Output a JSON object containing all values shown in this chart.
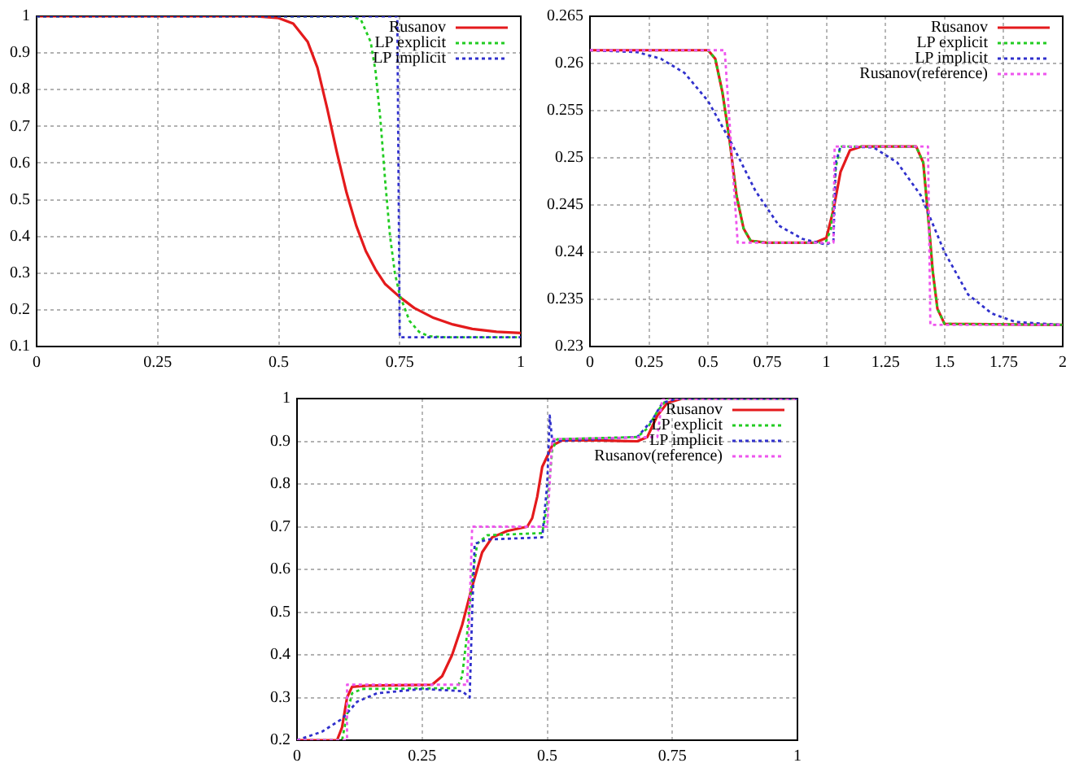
{
  "chart_data": [
    {
      "type": "line",
      "xlim": [
        0,
        1
      ],
      "xticks": [
        0,
        0.25,
        0.5,
        0.75,
        1
      ],
      "ylim": [
        0.1,
        1
      ],
      "yticks": [
        0.1,
        0.2,
        0.3,
        0.4,
        0.5,
        0.6,
        0.7,
        0.8,
        0.9,
        1
      ],
      "grid": true,
      "legend": "top right",
      "series": [
        {
          "name": "Rusanov",
          "color": "#e41a1c",
          "line_style": "solid",
          "x": [
            0,
            0.45,
            0.5,
            0.53,
            0.56,
            0.58,
            0.6,
            0.62,
            0.64,
            0.66,
            0.68,
            0.7,
            0.72,
            0.75,
            0.78,
            0.82,
            0.86,
            0.9,
            0.95,
            1
          ],
          "values": [
            1,
            1,
            0.995,
            0.98,
            0.93,
            0.86,
            0.75,
            0.63,
            0.52,
            0.43,
            0.36,
            0.31,
            0.27,
            0.235,
            0.205,
            0.178,
            0.16,
            0.148,
            0.14,
            0.137
          ]
        },
        {
          "name": "LP explicit",
          "color": "#22cc22",
          "line_style": "dotted",
          "x": [
            0,
            0.65,
            0.67,
            0.69,
            0.7,
            0.71,
            0.72,
            0.73,
            0.74,
            0.75,
            0.77,
            0.79,
            0.81,
            0.85,
            1
          ],
          "values": [
            1,
            1,
            0.99,
            0.93,
            0.85,
            0.72,
            0.55,
            0.4,
            0.3,
            0.24,
            0.17,
            0.14,
            0.128,
            0.125,
            0.125
          ]
        },
        {
          "name": "LP implicit",
          "color": "#3030cc",
          "line_style": "dotted",
          "x": [
            0,
            0.745,
            0.75,
            1
          ],
          "values": [
            1,
            1,
            0.125,
            0.125
          ]
        }
      ]
    },
    {
      "type": "line",
      "xlim": [
        0,
        2
      ],
      "xticks": [
        0,
        0.25,
        0.5,
        0.75,
        1,
        1.25,
        1.5,
        1.75,
        2
      ],
      "ylim": [
        0.23,
        0.265
      ],
      "yticks": [
        0.23,
        0.235,
        0.24,
        0.245,
        0.25,
        0.255,
        0.26,
        0.265
      ],
      "grid": true,
      "legend": "top right",
      "series": [
        {
          "name": "Rusanov",
          "color": "#e41a1c",
          "line_style": "solid",
          "x": [
            0,
            0.5,
            0.53,
            0.56,
            0.59,
            0.62,
            0.65,
            0.68,
            0.75,
            0.95,
            1,
            1.03,
            1.06,
            1.1,
            1.15,
            1.38,
            1.41,
            1.43,
            1.45,
            1.47,
            1.5,
            2
          ],
          "values": [
            0.2614,
            0.2614,
            0.2605,
            0.257,
            0.252,
            0.246,
            0.2425,
            0.2412,
            0.241,
            0.241,
            0.2415,
            0.2445,
            0.2485,
            0.2508,
            0.2512,
            0.2512,
            0.2495,
            0.244,
            0.238,
            0.234,
            0.2324,
            0.2323
          ]
        },
        {
          "name": "LP explicit",
          "color": "#22cc22",
          "line_style": "dotted",
          "x": [
            0,
            0.5,
            0.53,
            0.56,
            0.59,
            0.62,
            0.65,
            0.68,
            0.75,
            0.98,
            1.0,
            1.02,
            1.04,
            1.06,
            1.38,
            1.41,
            1.43,
            1.45,
            1.47,
            1.5,
            2
          ],
          "values": [
            0.2614,
            0.2614,
            0.2605,
            0.257,
            0.252,
            0.246,
            0.2425,
            0.2412,
            0.241,
            0.241,
            0.2412,
            0.2425,
            0.249,
            0.2512,
            0.2512,
            0.2495,
            0.244,
            0.238,
            0.234,
            0.2324,
            0.2323
          ]
        },
        {
          "name": "LP implicit",
          "color": "#3030cc",
          "line_style": "dotted",
          "x": [
            0,
            0.2,
            0.3,
            0.4,
            0.5,
            0.6,
            0.7,
            0.8,
            0.9,
            1,
            1.03,
            1.04,
            1.06,
            1.2,
            1.3,
            1.4,
            1.5,
            1.6,
            1.7,
            1.8,
            2
          ],
          "values": [
            0.2614,
            0.2612,
            0.2605,
            0.259,
            0.256,
            0.2515,
            0.2465,
            0.2428,
            0.2414,
            0.2408,
            0.2412,
            0.2495,
            0.2512,
            0.2511,
            0.2495,
            0.246,
            0.24,
            0.2355,
            0.2335,
            0.2326,
            0.2323
          ]
        },
        {
          "name": "Rusanov(reference)",
          "color": "#ee55ee",
          "line_style": "dotted",
          "x": [
            0,
            0.57,
            0.625,
            1.03,
            1.035,
            1.43,
            1.44,
            2
          ],
          "values": [
            0.2614,
            0.2614,
            0.241,
            0.241,
            0.2512,
            0.2512,
            0.2323,
            0.2323
          ]
        }
      ]
    },
    {
      "type": "line",
      "xlim": [
        0,
        1
      ],
      "xticks": [
        0,
        0.25,
        0.5,
        0.75,
        1
      ],
      "ylim": [
        0.2,
        1
      ],
      "yticks": [
        0.2,
        0.3,
        0.4,
        0.5,
        0.6,
        0.7,
        0.8,
        0.9,
        1
      ],
      "grid": true,
      "legend": "top right",
      "series": [
        {
          "name": "Rusanov",
          "color": "#e41a1c",
          "line_style": "solid",
          "x": [
            0,
            0.08,
            0.09,
            0.1,
            0.11,
            0.14,
            0.27,
            0.29,
            0.31,
            0.33,
            0.35,
            0.37,
            0.39,
            0.42,
            0.46,
            0.47,
            0.48,
            0.49,
            0.51,
            0.53,
            0.6,
            0.68,
            0.7,
            0.72,
            0.74,
            0.77,
            1
          ],
          "values": [
            0.2,
            0.2,
            0.23,
            0.3,
            0.325,
            0.328,
            0.33,
            0.35,
            0.4,
            0.47,
            0.56,
            0.64,
            0.675,
            0.69,
            0.7,
            0.72,
            0.77,
            0.84,
            0.89,
            0.902,
            0.902,
            0.9,
            0.91,
            0.96,
            0.99,
            1,
            1
          ]
        },
        {
          "name": "LP explicit",
          "color": "#22cc22",
          "line_style": "dotted",
          "x": [
            0,
            0.09,
            0.1,
            0.11,
            0.13,
            0.32,
            0.33,
            0.34,
            0.35,
            0.36,
            0.38,
            0.49,
            0.5,
            0.51,
            0.52,
            0.68,
            0.7,
            0.72,
            0.74,
            1
          ],
          "values": [
            0.2,
            0.2,
            0.26,
            0.31,
            0.32,
            0.322,
            0.35,
            0.45,
            0.58,
            0.66,
            0.68,
            0.685,
            0.75,
            0.88,
            0.905,
            0.91,
            0.93,
            0.97,
            1,
            1
          ]
        },
        {
          "name": "LP implicit",
          "color": "#3030cc",
          "line_style": "dotted",
          "x": [
            0,
            0.05,
            0.09,
            0.12,
            0.16,
            0.25,
            0.33,
            0.345,
            0.35,
            0.355,
            0.38,
            0.49,
            0.5,
            0.505,
            0.51,
            0.6,
            0.68,
            0.71,
            0.73,
            0.76,
            1
          ],
          "values": [
            0.2,
            0.22,
            0.25,
            0.29,
            0.31,
            0.32,
            0.315,
            0.3,
            0.5,
            0.66,
            0.67,
            0.675,
            0.8,
            0.96,
            0.9,
            0.905,
            0.91,
            0.95,
            0.99,
            1,
            1
          ]
        },
        {
          "name": "Rusanov(reference)",
          "color": "#ee55ee",
          "line_style": "dotted",
          "x": [
            0,
            0.1,
            0.1,
            0.34,
            0.35,
            0.5,
            0.51,
            0.72,
            0.73,
            1
          ],
          "values": [
            0.2,
            0.2,
            0.33,
            0.33,
            0.7,
            0.7,
            0.905,
            0.91,
            1,
            1
          ]
        }
      ]
    }
  ]
}
